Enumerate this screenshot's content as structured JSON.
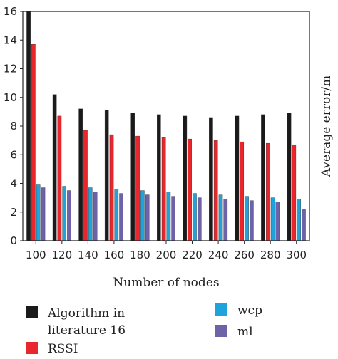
{
  "chart_data": {
    "type": "bar",
    "categories": [
      "100",
      "120",
      "140",
      "160",
      "180",
      "200",
      "220",
      "240",
      "260",
      "280",
      "300"
    ],
    "series": [
      {
        "name": "Algorithm in literature 16",
        "color": "#1a1a1a",
        "values": [
          16.0,
          10.2,
          9.2,
          9.1,
          8.9,
          8.8,
          8.7,
          8.6,
          8.7,
          8.8,
          8.9
        ]
      },
      {
        "name": "RSSI",
        "color": "#e8262c",
        "values": [
          13.7,
          8.7,
          7.7,
          7.4,
          7.3,
          7.2,
          7.1,
          7.0,
          6.9,
          6.8,
          6.7
        ]
      },
      {
        "name": "wcp",
        "color": "#1fa3dc",
        "values": [
          3.9,
          3.8,
          3.7,
          3.6,
          3.5,
          3.4,
          3.3,
          3.2,
          3.1,
          3.0,
          2.9
        ]
      },
      {
        "name": "ml",
        "color": "#6f63a8",
        "values": [
          3.7,
          3.5,
          3.4,
          3.3,
          3.2,
          3.1,
          3.0,
          2.9,
          2.8,
          2.7,
          2.2
        ]
      }
    ],
    "xlabel": "Number of nodes",
    "ylabel": "Average error/m",
    "ylim": [
      0,
      16
    ],
    "yticks": [
      "0",
      "2",
      "4",
      "6",
      "8",
      "10",
      "12",
      "14",
      "16"
    ],
    "grid": false,
    "legend_position": "bottom"
  },
  "legend": {
    "algorithm_line1": "Algorithm in",
    "algorithm_line2": "literature 16",
    "rssi": "RSSI",
    "wcp": "wcp",
    "ml": "ml"
  }
}
